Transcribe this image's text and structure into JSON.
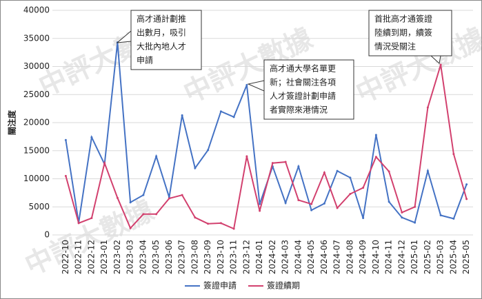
{
  "chart_data": {
    "type": "line",
    "y_label": "關注度",
    "watermark": "中評大數據",
    "categories": [
      "2022-10",
      "2022-11",
      "2022-12",
      "2023-01",
      "2023-02",
      "2023-03",
      "2023-04",
      "2023-05",
      "2023-06",
      "2023-07",
      "2023-08",
      "2023-09",
      "2023-10",
      "2023-11",
      "2023-12",
      "2024-01",
      "2024-02",
      "2024-03",
      "2024-04",
      "2024-05",
      "2024-06",
      "2024-07",
      "2024-08",
      "2024-09",
      "2024-10",
      "2024-11",
      "2024-12",
      "2025-01",
      "2025-02",
      "2025-03",
      "2025-04",
      "2025-05"
    ],
    "series": [
      {
        "name": "簽證申請",
        "color": "#4472c4",
        "values": [
          16900,
          2200,
          17400,
          12600,
          34300,
          5800,
          7100,
          14000,
          6700,
          21300,
          11900,
          15100,
          22000,
          21000,
          26700,
          5500,
          12200,
          5700,
          12200,
          4400,
          5600,
          11400,
          10200,
          3000,
          17800,
          5900,
          3100,
          2200,
          11400,
          3500,
          2900,
          9000
        ]
      },
      {
        "name": "簽證續期",
        "color": "#d2406e",
        "values": [
          10500,
          2100,
          3000,
          12800,
          6600,
          1200,
          3700,
          3700,
          6500,
          7100,
          3100,
          2000,
          2100,
          1100,
          14000,
          4300,
          12800,
          13000,
          6200,
          5500,
          11100,
          4800,
          7300,
          8400,
          13900,
          11300,
          4000,
          5000,
          22700,
          30300,
          14400,
          6400
        ]
      }
    ],
    "ylim": [
      0,
      40000
    ],
    "yticks": [
      0,
      5000,
      10000,
      15000,
      20000,
      25000,
      30000,
      35000,
      40000
    ],
    "grid": true,
    "annotations": [
      {
        "lines": [
          "高才通計劃推",
          "出數月，吸引",
          "大批內地人才",
          "申請"
        ]
      },
      {
        "lines": [
          "高才通大學名單更",
          "新；社會關注各項",
          "人才簽證計劃申請",
          "者實際來港情況"
        ]
      },
      {
        "lines": [
          "首批高才通簽證",
          "陸續到期，續簽",
          "情況受關注"
        ]
      }
    ]
  }
}
